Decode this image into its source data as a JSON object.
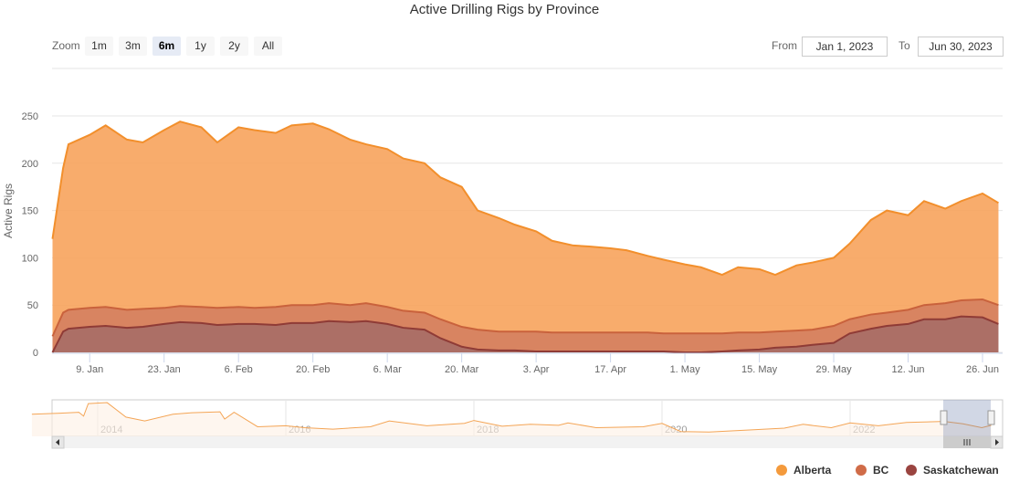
{
  "chart_data": {
    "type": "area",
    "stacked": true,
    "title": "Active Drilling Rigs by Province",
    "ylabel": "Active Rigs",
    "ylim": [
      0,
      250
    ],
    "yticks": [
      "0",
      "50",
      "100",
      "150",
      "200",
      "250"
    ],
    "xticks": [
      {
        "date": "2023-01-09",
        "label": "9. Jan"
      },
      {
        "date": "2023-01-23",
        "label": "23. Jan"
      },
      {
        "date": "2023-02-06",
        "label": "6. Feb"
      },
      {
        "date": "2023-02-20",
        "label": "20. Feb"
      },
      {
        "date": "2023-03-06",
        "label": "6. Mar"
      },
      {
        "date": "2023-03-20",
        "label": "20. Mar"
      },
      {
        "date": "2023-04-03",
        "label": "3. Apr"
      },
      {
        "date": "2023-04-17",
        "label": "17. Apr"
      },
      {
        "date": "2023-05-01",
        "label": "1. May"
      },
      {
        "date": "2023-05-15",
        "label": "15. May"
      },
      {
        "date": "2023-05-29",
        "label": "29. May"
      },
      {
        "date": "2023-06-12",
        "label": "12. Jun"
      },
      {
        "date": "2023-06-26",
        "label": "26. Jun"
      }
    ],
    "grid": true,
    "legend_position": "bottom-right",
    "series": [
      {
        "name": "Alberta",
        "color": "#f7a35c",
        "line": "#f28f2c"
      },
      {
        "name": "BC",
        "color": "#d67d58",
        "line": "#c9623c"
      },
      {
        "name": "Saskatchewan",
        "color": "#a8675e",
        "line": "#8f3b36"
      }
    ],
    "columns": [
      "date",
      "Alberta",
      "BC",
      "Saskatchewan"
    ],
    "rows": [
      [
        "2023-01-02",
        103,
        17,
        0
      ],
      [
        "2023-01-04",
        153,
        20,
        22
      ],
      [
        "2023-01-05",
        175,
        20,
        25
      ],
      [
        "2023-01-09",
        183,
        20,
        27
      ],
      [
        "2023-01-12",
        192,
        20,
        28
      ],
      [
        "2023-01-16",
        180,
        19,
        26
      ],
      [
        "2023-01-19",
        176,
        19,
        27
      ],
      [
        "2023-01-23",
        188,
        17,
        30
      ],
      [
        "2023-01-26",
        195,
        17,
        32
      ],
      [
        "2023-01-30",
        190,
        17,
        31
      ],
      [
        "2023-02-02",
        175,
        18,
        29
      ],
      [
        "2023-02-06",
        190,
        18,
        30
      ],
      [
        "2023-02-09",
        188,
        17,
        30
      ],
      [
        "2023-02-13",
        184,
        19,
        29
      ],
      [
        "2023-02-16",
        190,
        19,
        31
      ],
      [
        "2023-02-20",
        192,
        19,
        31
      ],
      [
        "2023-02-23",
        184,
        19,
        33
      ],
      [
        "2023-02-27",
        175,
        18,
        32
      ],
      [
        "2023-03-02",
        168,
        19,
        33
      ],
      [
        "2023-03-06",
        167,
        18,
        30
      ],
      [
        "2023-03-09",
        161,
        18,
        26
      ],
      [
        "2023-03-13",
        158,
        18,
        24
      ],
      [
        "2023-03-16",
        150,
        20,
        15
      ],
      [
        "2023-03-20",
        148,
        21,
        6
      ],
      [
        "2023-03-23",
        126,
        21,
        3
      ],
      [
        "2023-03-27",
        120,
        20,
        2
      ],
      [
        "2023-03-30",
        113,
        20,
        2
      ],
      [
        "2023-04-03",
        106,
        21,
        1
      ],
      [
        "2023-04-06",
        97,
        20,
        1
      ],
      [
        "2023-04-10",
        92,
        20,
        1
      ],
      [
        "2023-04-13",
        91,
        20,
        1
      ],
      [
        "2023-04-17",
        89,
        20,
        1
      ],
      [
        "2023-04-20",
        87,
        20,
        1
      ],
      [
        "2023-04-24",
        81,
        20,
        1
      ],
      [
        "2023-04-27",
        78,
        19,
        1
      ],
      [
        "2023-05-01",
        73,
        20,
        0
      ],
      [
        "2023-05-04",
        70,
        20,
        0
      ],
      [
        "2023-05-08",
        62,
        19,
        1
      ],
      [
        "2023-05-11",
        69,
        19,
        2
      ],
      [
        "2023-05-15",
        67,
        18,
        3
      ],
      [
        "2023-05-18",
        60,
        17,
        5
      ],
      [
        "2023-05-22",
        69,
        17,
        6
      ],
      [
        "2023-05-25",
        71,
        16,
        8
      ],
      [
        "2023-05-29",
        72,
        18,
        10
      ],
      [
        "2023-06-01",
        80,
        15,
        20
      ],
      [
        "2023-06-05",
        100,
        15,
        25
      ],
      [
        "2023-06-08",
        108,
        14,
        28
      ],
      [
        "2023-06-12",
        100,
        15,
        30
      ],
      [
        "2023-06-15",
        110,
        15,
        35
      ],
      [
        "2023-06-19",
        100,
        17,
        35
      ],
      [
        "2023-06-22",
        105,
        17,
        38
      ],
      [
        "2023-06-26",
        112,
        19,
        37
      ],
      [
        "2023-06-29",
        108,
        20,
        30
      ]
    ]
  },
  "zoom": {
    "label": "Zoom",
    "buttons": [
      "1m",
      "3m",
      "6m",
      "1y",
      "2y",
      "All"
    ],
    "selected": "6m"
  },
  "range": {
    "from_label": "From",
    "from": "Jan 1, 2023",
    "to_label": "To",
    "to": "Jun 30, 2023"
  },
  "navigator": {
    "year_labels": [
      "2014",
      "2016",
      "2018",
      "2020",
      "2022"
    ],
    "series": [
      [
        2013.3,
        330
      ],
      [
        2013.6,
        340
      ],
      [
        2013.8,
        350
      ],
      [
        2013.85,
        310
      ],
      [
        2013.9,
        440
      ],
      [
        2014.1,
        450
      ],
      [
        2014.3,
        300
      ],
      [
        2014.5,
        260
      ],
      [
        2014.8,
        330
      ],
      [
        2015.0,
        345
      ],
      [
        2015.3,
        355
      ],
      [
        2015.35,
        280
      ],
      [
        2015.45,
        350
      ],
      [
        2015.7,
        200
      ],
      [
        2016.0,
        210
      ],
      [
        2016.2,
        190
      ],
      [
        2016.5,
        175
      ],
      [
        2016.9,
        200
      ],
      [
        2017.1,
        260
      ],
      [
        2017.5,
        210
      ],
      [
        2017.9,
        235
      ],
      [
        2018.0,
        265
      ],
      [
        2018.3,
        205
      ],
      [
        2018.6,
        225
      ],
      [
        2018.9,
        215
      ],
      [
        2019.0,
        240
      ],
      [
        2019.3,
        190
      ],
      [
        2019.8,
        200
      ],
      [
        2020.0,
        235
      ],
      [
        2020.2,
        150
      ],
      [
        2020.5,
        145
      ],
      [
        2021.0,
        170
      ],
      [
        2021.3,
        185
      ],
      [
        2021.5,
        225
      ],
      [
        2021.8,
        190
      ],
      [
        2022.0,
        240
      ],
      [
        2022.3,
        210
      ],
      [
        2022.6,
        245
      ],
      [
        2023.0,
        255
      ],
      [
        2023.2,
        230
      ],
      [
        2023.4,
        190
      ],
      [
        2023.5,
        215
      ]
    ]
  }
}
